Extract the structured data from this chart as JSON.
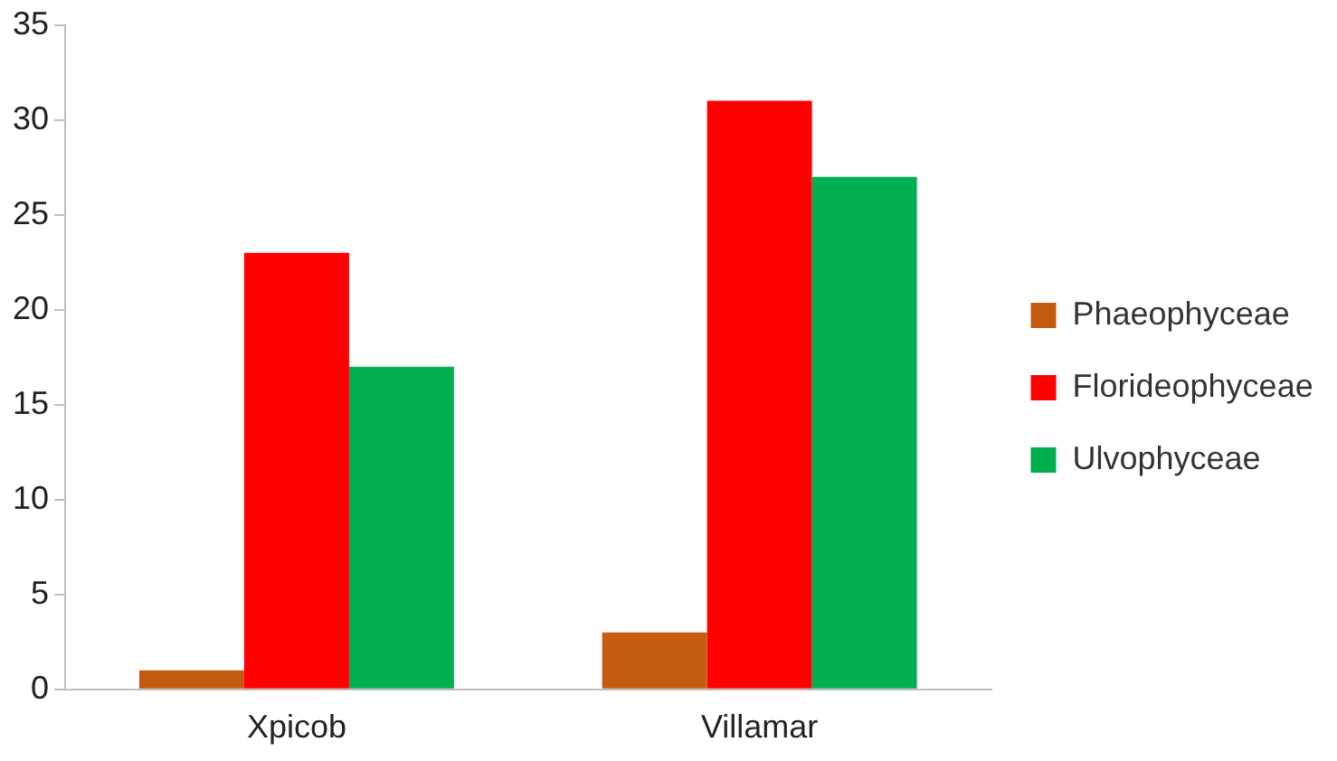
{
  "chart_data": {
    "type": "bar",
    "categories": [
      "Xpicob",
      "Villamar"
    ],
    "series": [
      {
        "name": "Phaeophyceae",
        "color": "#c55a11",
        "values": [
          1,
          3
        ]
      },
      {
        "name": "Florideophyceae",
        "color": "#ff0000",
        "values": [
          23,
          31
        ]
      },
      {
        "name": "Ulvophyceae",
        "color": "#00b050",
        "values": [
          17,
          27
        ]
      }
    ],
    "ylim": [
      0,
      35
    ],
    "yticks": [
      0,
      5,
      10,
      15,
      20,
      25,
      30,
      35
    ],
    "grid": false,
    "legend": "right"
  }
}
